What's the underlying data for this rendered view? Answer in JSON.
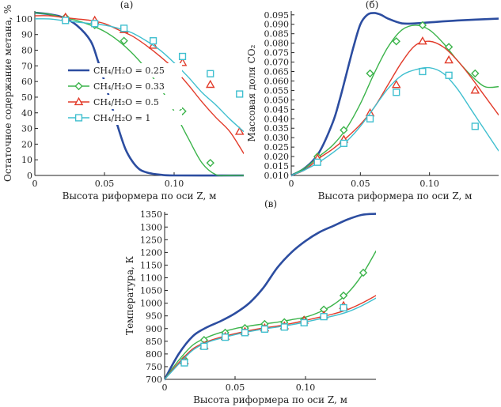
{
  "legend": {
    "entries": [
      {
        "series": 0,
        "label": "CH₄/H₂O = 0.25"
      },
      {
        "series": 1,
        "label": "CH₄/H₂O = 0.33"
      },
      {
        "series": 2,
        "label": "CH₄/H₂O = 0.5"
      },
      {
        "series": 3,
        "label": "CH₄/H₂O = 1"
      }
    ]
  },
  "styles": [
    {
      "color": "#2c4da0",
      "marker": "none",
      "width": 2.6
    },
    {
      "color": "#3cb44b",
      "marker": "diamond",
      "width": 1.4
    },
    {
      "color": "#e23b2a",
      "marker": "triangle",
      "width": 1.4
    },
    {
      "color": "#3fbfcf",
      "marker": "square",
      "width": 1.4
    }
  ],
  "chart_data": [
    {
      "panel": "(а)",
      "type": "line",
      "xlabel": "Высота риформера по оси Z, м",
      "ylabel": "Остаточное содержание метана, %",
      "xlim": [
        0,
        0.15
      ],
      "ylim": [
        0,
        105
      ],
      "xticks": [
        0,
        0.05,
        0.1
      ],
      "xticklabels": [
        "0",
        "0.05",
        "0.10"
      ],
      "yticks": [
        0,
        10,
        20,
        30,
        40,
        50,
        60,
        70,
        80,
        90,
        100
      ],
      "yticklabels": [
        "0",
        "10",
        "20",
        "30",
        "40",
        "50",
        "60",
        "70",
        "80",
        "90",
        "100"
      ],
      "legend_position": "left",
      "series": [
        {
          "x": [
            0,
            0.01,
            0.02,
            0.03,
            0.04,
            0.045,
            0.05,
            0.055,
            0.06,
            0.065,
            0.07,
            0.075,
            0.08,
            0.085,
            0.09,
            0.1,
            0.15
          ],
          "y": [
            104,
            103,
            101,
            96,
            86,
            74,
            60,
            45,
            30,
            17,
            9,
            4,
            2,
            1,
            0.5,
            0,
            0
          ]
        },
        {
          "x": [
            0,
            0.01,
            0.02,
            0.03,
            0.04,
            0.05,
            0.06,
            0.07,
            0.08,
            0.09,
            0.1,
            0.11,
            0.12,
            0.13,
            0.14,
            0.15
          ],
          "y": [
            104,
            103,
            101,
            99,
            96,
            92,
            86,
            78,
            68,
            56,
            41,
            24,
            8,
            0.5,
            0,
            0
          ],
          "markers_x": [
            0.022,
            0.043,
            0.064,
            0.085,
            0.106,
            0.126
          ],
          "markers_y": [
            101,
            96,
            86,
            56,
            41,
            8
          ]
        },
        {
          "x": [
            0,
            0.01,
            0.02,
            0.03,
            0.04,
            0.05,
            0.06,
            0.07,
            0.08,
            0.09,
            0.1,
            0.11,
            0.12,
            0.13,
            0.14,
            0.15
          ],
          "y": [
            102,
            102,
            101,
            100,
            99,
            97,
            93,
            89,
            83,
            76,
            68,
            58,
            47,
            37,
            28,
            14
          ],
          "markers_x": [
            0.022,
            0.043,
            0.064,
            0.085,
            0.106,
            0.126,
            0.147
          ],
          "markers_y": [
            101,
            99,
            93,
            83,
            72,
            58,
            28
          ]
        },
        {
          "x": [
            0,
            0.01,
            0.02,
            0.03,
            0.04,
            0.05,
            0.06,
            0.07,
            0.08,
            0.09,
            0.1,
            0.11,
            0.12,
            0.13,
            0.14,
            0.15
          ],
          "y": [
            100,
            100,
            99,
            98,
            97,
            96,
            94,
            91,
            86,
            80,
            72,
            63,
            53,
            45,
            36,
            28
          ],
          "markers_x": [
            0.022,
            0.043,
            0.064,
            0.085,
            0.106,
            0.126,
            0.147
          ],
          "markers_y": [
            99,
            97,
            94,
            86,
            76,
            65,
            52
          ]
        }
      ]
    },
    {
      "panel": "(б)",
      "type": "line",
      "xlabel": "Высота риформера по оси Z, м",
      "ylabel": "Массовая доля CO₂",
      "xlim": [
        0,
        0.15
      ],
      "ylim": [
        0.01,
        0.097
      ],
      "xticks": [
        0,
        0.05,
        0.1
      ],
      "xticklabels": [
        "0",
        "0.05",
        "0.10"
      ],
      "yticks": [
        0.01,
        0.015,
        0.02,
        0.025,
        0.03,
        0.035,
        0.04,
        0.045,
        0.05,
        0.055,
        0.06,
        0.065,
        0.07,
        0.075,
        0.08,
        0.085,
        0.09,
        0.095
      ],
      "yticklabels": [
        "0.010",
        "0.015",
        "0.020",
        "0.025",
        "0.030",
        "0.035",
        "0.040",
        "0.045",
        "0.050",
        "0.055",
        "0.060",
        "0.065",
        "0.070",
        "0.075",
        "0.080",
        "0.085",
        "0.090",
        "0.095"
      ],
      "series": [
        {
          "x": [
            0,
            0.01,
            0.02,
            0.03,
            0.035,
            0.04,
            0.045,
            0.05,
            0.055,
            0.06,
            0.065,
            0.07,
            0.08,
            0.09,
            0.1,
            0.12,
            0.15
          ],
          "y": [
            0.01,
            0.014,
            0.022,
            0.038,
            0.05,
            0.064,
            0.078,
            0.09,
            0.095,
            0.096,
            0.095,
            0.093,
            0.0905,
            0.0905,
            0.091,
            0.092,
            0.093
          ]
        },
        {
          "x": [
            0,
            0.01,
            0.02,
            0.03,
            0.04,
            0.05,
            0.06,
            0.07,
            0.08,
            0.09,
            0.1,
            0.11,
            0.12,
            0.13,
            0.14,
            0.15
          ],
          "y": [
            0.01,
            0.014,
            0.02,
            0.026,
            0.035,
            0.048,
            0.064,
            0.078,
            0.087,
            0.0895,
            0.087,
            0.08,
            0.071,
            0.063,
            0.057,
            0.057
          ],
          "markers_x": [
            0.019,
            0.038,
            0.057,
            0.076,
            0.095,
            0.114,
            0.133
          ],
          "markers_y": [
            0.02,
            0.034,
            0.064,
            0.081,
            0.0895,
            0.078,
            0.064
          ]
        },
        {
          "x": [
            0,
            0.01,
            0.02,
            0.03,
            0.04,
            0.05,
            0.06,
            0.07,
            0.08,
            0.09,
            0.1,
            0.11,
            0.12,
            0.13,
            0.14,
            0.15
          ],
          "y": [
            0.01,
            0.013,
            0.019,
            0.024,
            0.03,
            0.037,
            0.046,
            0.058,
            0.07,
            0.079,
            0.081,
            0.078,
            0.071,
            0.062,
            0.052,
            0.042
          ],
          "markers_x": [
            0.019,
            0.038,
            0.057,
            0.076,
            0.095,
            0.114,
            0.133
          ],
          "markers_y": [
            0.019,
            0.029,
            0.043,
            0.058,
            0.081,
            0.071,
            0.055
          ]
        },
        {
          "x": [
            0,
            0.01,
            0.02,
            0.03,
            0.04,
            0.05,
            0.06,
            0.07,
            0.08,
            0.09,
            0.1,
            0.11,
            0.12,
            0.13,
            0.14,
            0.15
          ],
          "y": [
            0.01,
            0.013,
            0.017,
            0.022,
            0.028,
            0.036,
            0.046,
            0.056,
            0.063,
            0.066,
            0.067,
            0.064,
            0.056,
            0.045,
            0.034,
            0.023
          ],
          "markers_x": [
            0.019,
            0.038,
            0.057,
            0.076,
            0.095,
            0.114,
            0.133
          ],
          "markers_y": [
            0.017,
            0.027,
            0.04,
            0.054,
            0.065,
            0.063,
            0.036
          ]
        }
      ]
    },
    {
      "panel": "(в)",
      "type": "line",
      "xlabel": "Высота риформера по оси Z, м",
      "ylabel": "Температура, К",
      "xlim": [
        0,
        0.15
      ],
      "ylim": [
        700,
        1360
      ],
      "xticks": [
        0,
        0.05,
        0.1
      ],
      "xticklabels": [
        "0",
        "0.05",
        "0.10"
      ],
      "yticks": [
        700,
        750,
        800,
        850,
        900,
        950,
        1000,
        1050,
        1100,
        1150,
        1200,
        1250,
        1300,
        1350
      ],
      "yticklabels": [
        "700",
        "750",
        "800",
        "850",
        "900",
        "950",
        "1000",
        "1050",
        "1100",
        "1150",
        "1200",
        "1250",
        "1300",
        "1350"
      ],
      "series": [
        {
          "x": [
            0,
            0.01,
            0.02,
            0.03,
            0.04,
            0.05,
            0.06,
            0.07,
            0.08,
            0.09,
            0.1,
            0.11,
            0.12,
            0.13,
            0.14,
            0.15
          ],
          "y": [
            700,
            800,
            870,
            905,
            930,
            960,
            1000,
            1060,
            1140,
            1200,
            1245,
            1280,
            1305,
            1330,
            1348,
            1352
          ]
        },
        {
          "x": [
            0,
            0.01,
            0.02,
            0.03,
            0.04,
            0.05,
            0.06,
            0.07,
            0.08,
            0.09,
            0.1,
            0.11,
            0.12,
            0.13,
            0.14,
            0.15
          ],
          "y": [
            700,
            775,
            835,
            865,
            885,
            900,
            910,
            918,
            925,
            935,
            945,
            965,
            995,
            1040,
            1110,
            1205
          ],
          "markers_x": [
            0.014,
            0.028,
            0.043,
            0.057,
            0.071,
            0.085,
            0.099,
            0.113,
            0.127,
            0.141
          ],
          "markers_y": [
            778,
            855,
            884,
            902,
            918,
            925,
            935,
            975,
            1030,
            1120
          ]
        },
        {
          "x": [
            0,
            0.01,
            0.02,
            0.03,
            0.04,
            0.05,
            0.06,
            0.07,
            0.08,
            0.09,
            0.1,
            0.11,
            0.12,
            0.13,
            0.14,
            0.15
          ],
          "y": [
            700,
            765,
            820,
            848,
            866,
            880,
            892,
            902,
            910,
            920,
            932,
            945,
            958,
            975,
            1000,
            1030
          ],
          "markers_x": [
            0.014,
            0.028,
            0.043,
            0.057,
            0.071,
            0.085,
            0.099,
            0.113,
            0.127
          ],
          "markers_y": [
            772,
            832,
            868,
            888,
            902,
            910,
            932,
            952,
            990
          ]
        },
        {
          "x": [
            0,
            0.01,
            0.02,
            0.03,
            0.04,
            0.05,
            0.06,
            0.07,
            0.08,
            0.09,
            0.1,
            0.11,
            0.12,
            0.13,
            0.14,
            0.15
          ],
          "y": [
            700,
            760,
            815,
            845,
            862,
            876,
            888,
            898,
            906,
            915,
            926,
            938,
            950,
            966,
            990,
            1020
          ],
          "markers_x": [
            0.014,
            0.028,
            0.043,
            0.057,
            0.071,
            0.085,
            0.099,
            0.113,
            0.127
          ],
          "markers_y": [
            765,
            830,
            866,
            884,
            898,
            906,
            923,
            947,
            982
          ]
        }
      ]
    }
  ]
}
